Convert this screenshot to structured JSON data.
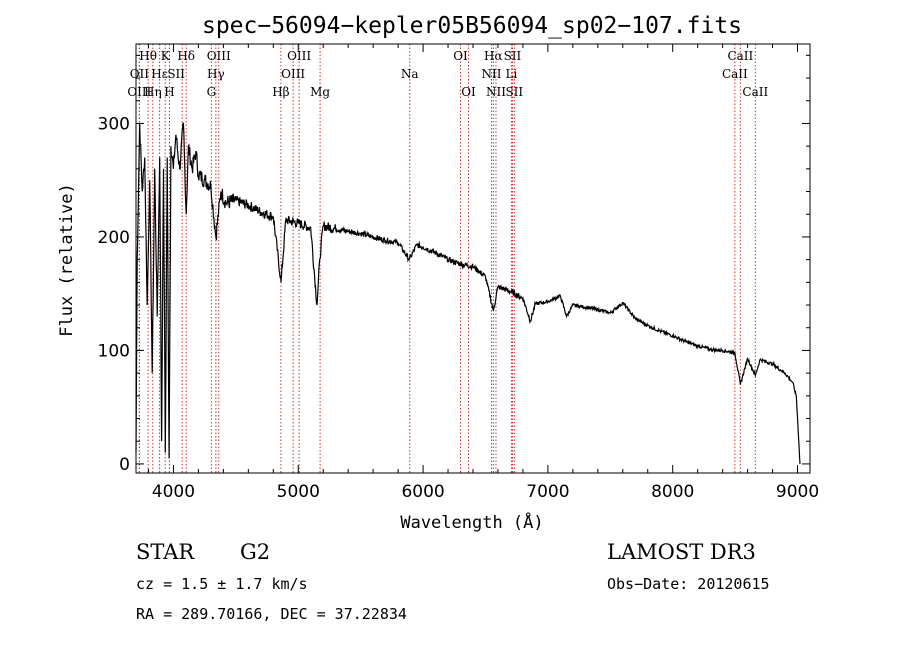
{
  "chart_data": {
    "type": "line",
    "title": "spec−56094−kepler05B56094_sp02−107.fits",
    "xlabel": "Wavelength (Å)",
    "ylabel": "Flux (relative)",
    "xlim": [
      3700,
      9100
    ],
    "ylim": [
      -8,
      370
    ],
    "xticks": [
      4000,
      5000,
      6000,
      7000,
      8000,
      9000
    ],
    "yticks": [
      0,
      100,
      200,
      300
    ],
    "series": [
      {
        "name": "spectrum",
        "x": [
          3700,
          3710,
          3730,
          3750,
          3770,
          3790,
          3810,
          3830,
          3850,
          3870,
          3890,
          3905,
          3920,
          3935,
          3950,
          3965,
          3980,
          4000,
          4020,
          4050,
          4080,
          4102,
          4120,
          4150,
          4180,
          4200,
          4250,
          4300,
          4340,
          4380,
          4420,
          4500,
          4600,
          4700,
          4800,
          4862,
          4900,
          5000,
          5100,
          5150,
          5172,
          5200,
          5300,
          5400,
          5500,
          5600,
          5700,
          5800,
          5890,
          5950,
          6000,
          6100,
          6200,
          6300,
          6400,
          6500,
          6563,
          6600,
          6700,
          6800,
          6860,
          6900,
          7000,
          7100,
          7150,
          7200,
          7300,
          7400,
          7500,
          7600,
          7700,
          7800,
          7900,
          8000,
          8100,
          8200,
          8300,
          8400,
          8498,
          8542,
          8600,
          8662,
          8700,
          8800,
          8900,
          8960,
          8990,
          9010,
          9020
        ],
        "y": [
          10,
          180,
          300,
          240,
          270,
          140,
          250,
          80,
          260,
          130,
          270,
          20,
          260,
          10,
          270,
          5,
          280,
          260,
          290,
          260,
          300,
          220,
          280,
          260,
          275,
          255,
          250,
          245,
          200,
          240,
          230,
          232,
          228,
          222,
          218,
          160,
          215,
          212,
          208,
          140,
          180,
          210,
          207,
          205,
          203,
          200,
          197,
          195,
          180,
          193,
          191,
          186,
          180,
          176,
          174,
          165,
          135,
          156,
          152,
          146,
          126,
          141,
          143,
          148,
          130,
          140,
          138,
          136,
          133,
          142,
          128,
          122,
          117,
          113,
          108,
          104,
          101,
          100,
          98,
          70,
          93,
          78,
          92,
          88,
          80,
          72,
          60,
          20,
          0
        ]
      }
    ],
    "lines": [
      {
        "name": "Hθ",
        "x": 3797,
        "row": 0,
        "dx": 0
      },
      {
        "name": "OII",
        "x": 3727,
        "row": 1,
        "dx": 0
      },
      {
        "name": "OIII",
        "x": 3727,
        "row": 2,
        "dx": 0
      },
      {
        "name": "Hη",
        "x": 3835,
        "row": 2,
        "dx": 0
      },
      {
        "name": "Hε",
        "x": 3889,
        "row": 1,
        "dx": 0
      },
      {
        "name": "K",
        "x": 3934,
        "row": 0,
        "dx": 0
      },
      {
        "name": "H",
        "x": 3968,
        "row": 2,
        "dx": 0
      },
      {
        "name": "SII",
        "x": 4070,
        "row": 1,
        "dx": -6
      },
      {
        "name": "Hδ",
        "x": 4102,
        "row": 0,
        "dx": 0
      },
      {
        "name": "OIII",
        "x": 4363,
        "row": 0,
        "dx": 0
      },
      {
        "name": "Hγ",
        "x": 4340,
        "row": 1,
        "dx": 0
      },
      {
        "name": "G",
        "x": 4304,
        "row": 2,
        "dx": 0
      },
      {
        "name": "Hβ",
        "x": 4861,
        "row": 2,
        "dx": 0
      },
      {
        "name": "OIII",
        "x": 5007,
        "row": 0,
        "dx": 0
      },
      {
        "name": "OIII",
        "x": 4959,
        "row": 1,
        "dx": 0
      },
      {
        "name": "Mg",
        "x": 5175,
        "row": 2,
        "dx": 0
      },
      {
        "name": "Na",
        "x": 5893,
        "row": 1,
        "dx": 0
      },
      {
        "name": "OI",
        "x": 6300,
        "row": 0,
        "dx": 0
      },
      {
        "name": "OI",
        "x": 6364,
        "row": 2,
        "dx": 0
      },
      {
        "name": "Hα",
        "x": 6563,
        "row": 0,
        "dx": 0
      },
      {
        "name": "NII",
        "x": 6548,
        "row": 1,
        "dx": 0
      },
      {
        "name": "NII",
        "x": 6584,
        "row": 2,
        "dx": 0
      },
      {
        "name": "SII",
        "x": 6716,
        "row": 0,
        "dx": 0
      },
      {
        "name": "Li",
        "x": 6708,
        "row": 1,
        "dx": 0
      },
      {
        "name": "SII",
        "x": 6731,
        "row": 2,
        "dx": 0
      },
      {
        "name": "CaII",
        "x": 8542,
        "row": 0,
        "dx": 0
      },
      {
        "name": "CaII",
        "x": 8498,
        "row": 1,
        "dx": 0
      },
      {
        "name": "CaII",
        "x": 8662,
        "row": 2,
        "dx": 0
      }
    ]
  },
  "info": {
    "object_class": "STAR",
    "subclass": "G2",
    "survey": "LAMOST DR3",
    "cz": "cz = 1.5 ± 1.7 km/s",
    "obs_date": "Obs−Date: 20120615",
    "coords": "RA = 289.70166, DEC =  37.22834"
  },
  "colors": {
    "spectrum": "#000000",
    "line_marker": "#cc3333"
  }
}
